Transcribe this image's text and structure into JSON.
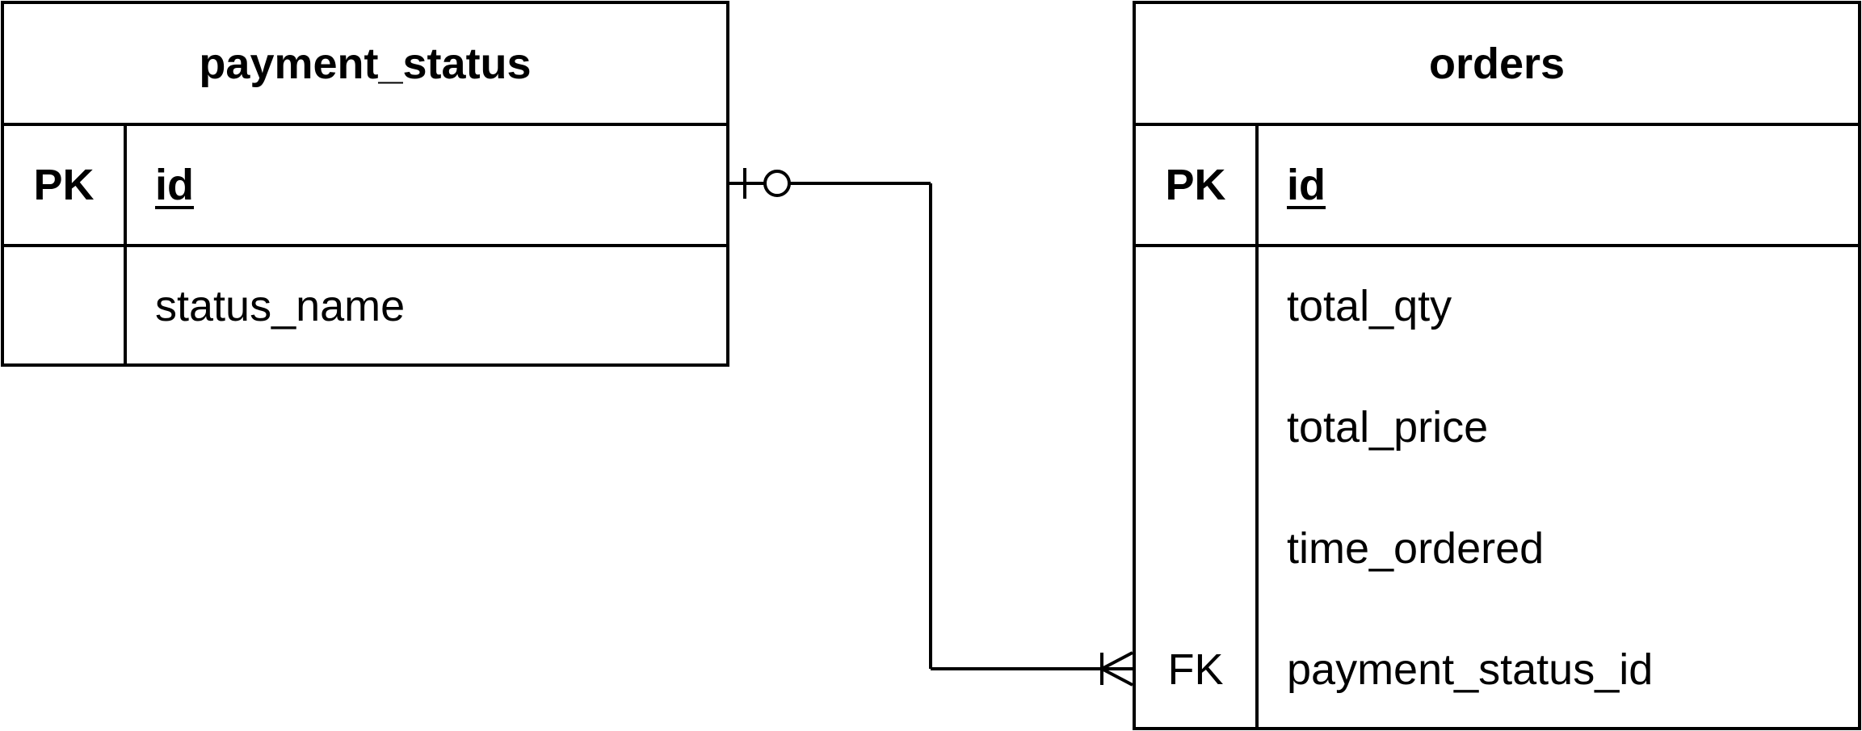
{
  "diagram": {
    "entities": [
      {
        "id": "payment_status",
        "title": "payment_status",
        "primary_key": {
          "key": "PK",
          "field": "id"
        },
        "fields": [
          {
            "key": "",
            "name": "status_name"
          }
        ]
      },
      {
        "id": "orders",
        "title": "orders",
        "primary_key": {
          "key": "PK",
          "field": "id"
        },
        "fields": [
          {
            "key": "",
            "name": "total_qty"
          },
          {
            "key": "",
            "name": "total_price"
          },
          {
            "key": "",
            "name": "time_ordered"
          },
          {
            "key": "FK",
            "name": "payment_status_id"
          }
        ]
      }
    ],
    "relationships": [
      {
        "from": "payment_status.id",
        "to": "orders.payment_status_id",
        "from_cardinality": "zero-or-one",
        "to_cardinality": "one-or-many"
      }
    ]
  }
}
